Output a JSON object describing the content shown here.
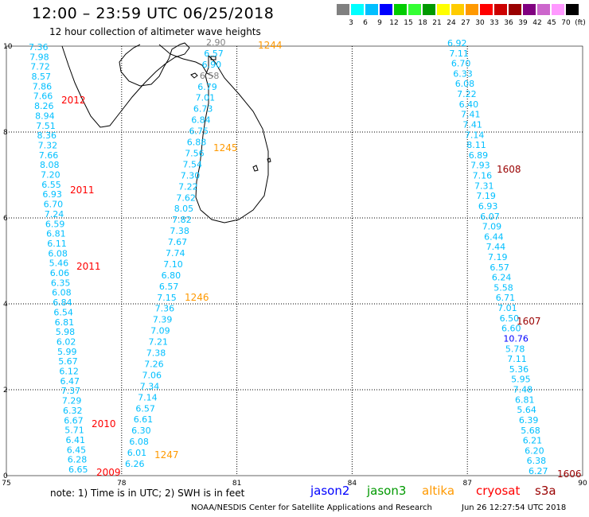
{
  "header": {
    "title": "12:00 – 23:59 UTC 06/25/2018",
    "subtitle": "12 hour collection of altimeter wave heights"
  },
  "color_scale": {
    "swatches": [
      "#808080",
      "#00ffff",
      "#00bfff",
      "#0000ff",
      "#00cc00",
      "#33ff33",
      "#009900",
      "#ffff00",
      "#ffcc00",
      "#ff9900",
      "#ff0000",
      "#cc0000",
      "#990000",
      "#800080",
      "#cc66cc",
      "#ff99ff",
      "#000000"
    ],
    "labels": [
      "3",
      "6",
      "9",
      "12",
      "15",
      "18",
      "21",
      "24",
      "27",
      "30",
      "33",
      "36",
      "39",
      "42",
      "45",
      "70",
      "(ft)"
    ]
  },
  "axes": {
    "lon_labels": [
      "75",
      "78",
      "81",
      "84",
      "87",
      "90"
    ],
    "lat_labels": [
      "0",
      "2",
      "4",
      "6",
      "8",
      "10"
    ]
  },
  "tracks": [
    {
      "pass": "2012",
      "pass_color": "#ff0000",
      "value_color": "#00bfff",
      "values": [
        "7.36",
        "7.98",
        "7.72",
        "8.57",
        "7.86",
        "7.66",
        "8.26",
        "8.94",
        "7.51",
        "8.36",
        "7.32",
        "7.66",
        "8.08",
        "7.20",
        "6.55",
        "6.93",
        "6.70",
        "7.24",
        "6.59",
        "6.81",
        "6.11",
        "6.08",
        "5.46",
        "6.06",
        "6.35",
        "6.08",
        "6.84",
        "6.54",
        "6.81",
        "5.98",
        "6.02",
        "5.99",
        "5.67",
        "6.12",
        "6.47",
        "7.37",
        "7.29",
        "6.32",
        "6.67",
        "5.71",
        "6.41",
        "6.45",
        "6.28",
        "6.65"
      ]
    },
    {
      "pass": "1245",
      "pass_color": "#ff9900",
      "value_color": "#00bfff",
      "values": [
        "2.90",
        "6.57",
        "6.90",
        "6.58",
        "6.79",
        "7.01",
        "6.73",
        "6.84",
        "6.75",
        "6.88",
        "7.56",
        "7.54",
        "7.30",
        "7.22",
        "7.62",
        "8.05",
        "7.82",
        "7.38",
        "7.67",
        "7.74",
        "7.10",
        "6.80",
        "6.57",
        "7.15",
        "7.36",
        "7.39",
        "7.09",
        "7.21",
        "7.38",
        "7.26",
        "7.06",
        "7.34",
        "7.14",
        "6.57",
        "6.61",
        "6.30",
        "6.08",
        "6.01",
        "6.26"
      ]
    },
    {
      "pass": "1608",
      "pass_color": "#990000",
      "value_color": "#00bfff",
      "values": [
        "6.92",
        "7.11",
        "6.70",
        "6.33",
        "6.08",
        "7.22",
        "6.40",
        "7.41",
        "7.41",
        "7.14",
        "8.11",
        "6.89",
        "7.93",
        "7.16",
        "7.31",
        "7.19",
        "6.93",
        "6.07",
        "7.09",
        "6.44",
        "7.44",
        "7.19",
        "6.57",
        "6.24",
        "5.58",
        "6.71",
        "7.01",
        "6.50",
        "6.60",
        "10.76",
        "5.78",
        "7.11",
        "5.36",
        "5.95",
        "7.48",
        "6.81",
        "5.64",
        "6.39",
        "5.68",
        "6.21",
        "6.20",
        "6.38",
        "6.27"
      ]
    }
  ],
  "pass_labels": [
    {
      "text": "2012",
      "color": "#ff0000"
    },
    {
      "text": "2011",
      "color": "#ff0000"
    },
    {
      "text": "2011",
      "color": "#ff0000"
    },
    {
      "text": "2010",
      "color": "#ff0000"
    },
    {
      "text": "2009",
      "color": "#ff0000"
    },
    {
      "text": "1244",
      "color": "#ff9900"
    },
    {
      "text": "1245",
      "color": "#ff9900"
    },
    {
      "text": "1246",
      "color": "#ff9900"
    },
    {
      "text": "1247",
      "color": "#ff9900"
    },
    {
      "text": "1608",
      "color": "#990000"
    },
    {
      "text": "1607",
      "color": "#990000"
    },
    {
      "text": "1606",
      "color": "#990000"
    }
  ],
  "note": "note: 1) Time is in UTC; 2) SWH is in feet",
  "satellites": [
    {
      "name": "jason2",
      "color": "#0000ff"
    },
    {
      "name": "jason3",
      "color": "#009900"
    },
    {
      "name": "altika",
      "color": "#ff9900"
    },
    {
      "name": "cryosat",
      "color": "#ff0000"
    },
    {
      "name": "s3a",
      "color": "#990000"
    }
  ],
  "footer": "NOAA/NESDIS Center for Satellite Applications and Research",
  "timestamp": "Jun 26 12:27:54 UTC 2018"
}
